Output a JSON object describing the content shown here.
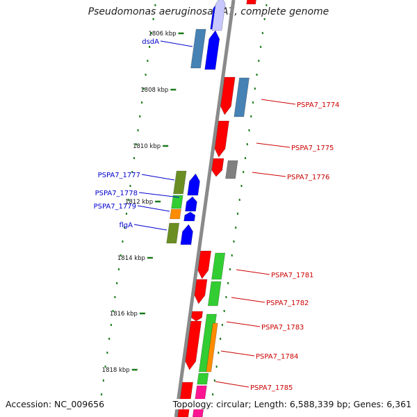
{
  "title": "Pseudomonas aeruginosa PA7, complete genome",
  "footer": {
    "accession": "Accession: NC_009656",
    "topology": "Topology: circular; Length: 6,588,339 bp; Genes: 6,361"
  },
  "ruler": {
    "unit_label": "kbp",
    "ticks_kbp": [
      1806,
      1808,
      1810,
      1812,
      1814,
      1816,
      1818
    ],
    "tick_labels": [
      "1806 kbp",
      "1808 kbp",
      "1810 kbp",
      "1812 kbp",
      "1814 kbp",
      "1816 kbp",
      "1818 kbp"
    ]
  },
  "colors": {
    "backbone": "#8a8a8a",
    "forward_strand": "#0000ff",
    "reverse_strand": "#ff0000",
    "forward_label": "#0000cc",
    "reverse_label": "#cc0000",
    "tick_mark": "#1a7a1a",
    "cog_steelblue": "#4682b4",
    "cog_olive": "#6b8e23",
    "cog_green": "#32cd32",
    "cog_gray": "#808080",
    "cog_orange": "#ff8c00",
    "cog_pink": "#ff1493"
  },
  "gene_labels": {
    "forward": [
      "dsdA",
      "PSPA7_1777",
      "PSPA7_1778",
      "PSPA7_1779",
      "flgA"
    ],
    "reverse": [
      "PSPA7_1774",
      "PSPA7_1775",
      "PSPA7_1776",
      "PSPA7_1781",
      "PSPA7_1782",
      "PSPA7_1783",
      "PSPA7_1784",
      "PSPA7_1785"
    ]
  }
}
